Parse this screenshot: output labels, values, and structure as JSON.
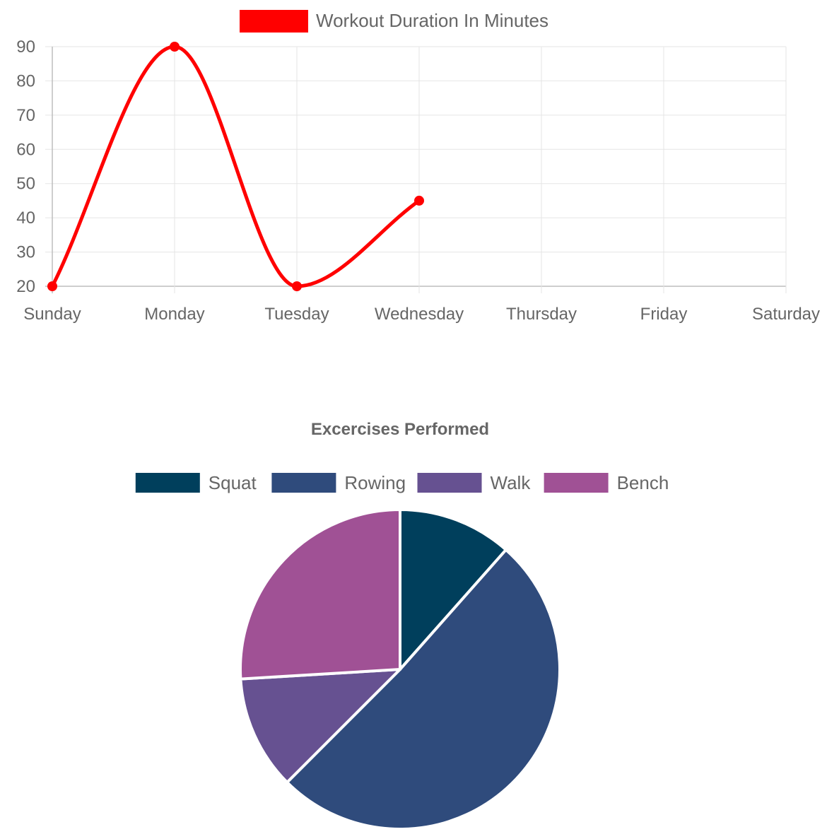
{
  "chart_data": [
    {
      "type": "line",
      "categories": [
        "Sunday",
        "Monday",
        "Tuesday",
        "Wednesday",
        "Thursday",
        "Friday",
        "Saturday"
      ],
      "series": [
        {
          "name": "Workout Duration In Minutes",
          "values": [
            20,
            90,
            20,
            45,
            null,
            null,
            null
          ],
          "color": "#ff0000"
        }
      ],
      "ylim": [
        20,
        90
      ],
      "yticks": [
        "20",
        "30",
        "40",
        "50",
        "60",
        "70",
        "80",
        "90"
      ],
      "grid": true,
      "legend": "top-center"
    },
    {
      "type": "pie",
      "title": "Excercises Performed",
      "labels": [
        "Squat",
        "Rowing",
        "Walk",
        "Bench"
      ],
      "values": [
        12,
        53,
        12,
        27
      ],
      "colors": [
        "#003f5c",
        "#2f4b7c",
        "#665191",
        "#a05195"
      ],
      "legend": "top-center"
    }
  ]
}
